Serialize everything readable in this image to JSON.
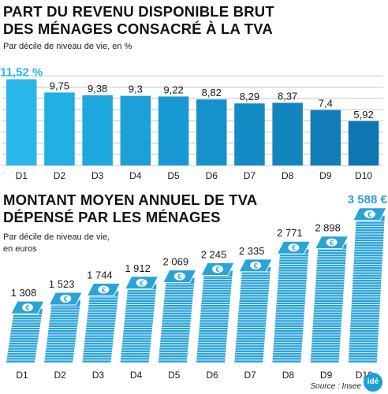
{
  "colors": {
    "accent": "#29b7ea",
    "axis_grey": "#bfc6cc",
    "tick_text": "#1a1a1a",
    "stack_fill": "#2aa3d8",
    "stack_line": "#ffffff",
    "coin": "#ffffff",
    "logo": "#1b9ed8"
  },
  "logo_text": "idé",
  "source": "Source : Insee",
  "chart_data": [
    {
      "type": "bar",
      "title_line1": "PART DU REVENU DISPONIBLE BRUT",
      "title_line2": "DES MÉNAGES CONSACRÉ À LA TVA",
      "subtitle": "Par décile de niveau de vie, en %",
      "categories": [
        "D1",
        "D2",
        "D3",
        "D4",
        "D5",
        "D6",
        "D7",
        "D8",
        "D9",
        "D10"
      ],
      "values": [
        11.52,
        9.75,
        9.38,
        9.3,
        9.22,
        8.82,
        8.29,
        8.37,
        7.4,
        5.92
      ],
      "value_labels": [
        "11,52 %",
        "9,75",
        "9,38",
        "9,3",
        "9,22",
        "8,82",
        "8,29",
        "8,37",
        "7,4",
        "5,92"
      ],
      "colors": [
        "#29b7ea",
        "#22afe4",
        "#1ea8de",
        "#1ba1d8",
        "#1999d2",
        "#1692cb",
        "#148bc4",
        "#1284be",
        "#107db7",
        "#0e76b0"
      ],
      "ylim": [
        0,
        12
      ],
      "grid": true
    },
    {
      "type": "bar",
      "title_line1": "MONTANT MOYEN ANNUEL DE TVA",
      "title_line2": "DÉPENSÉ PAR LES MÉNAGES",
      "subtitle_line1": "Par décile de niveau de vie,",
      "subtitle_line2": "en euros",
      "categories": [
        "D1",
        "D2",
        "D3",
        "D4",
        "D5",
        "D6",
        "D7",
        "D8",
        "D9",
        "D10"
      ],
      "values": [
        1308,
        1523,
        1744,
        1912,
        2069,
        2245,
        2335,
        2771,
        2898,
        3588
      ],
      "value_labels": [
        "1 308",
        "1 523",
        "1 744",
        "1 912",
        "2 069",
        "2 245",
        "2 335",
        "2 771",
        "2 898",
        "3 588 €"
      ],
      "ylim": [
        0,
        3700
      ],
      "grid": false
    }
  ]
}
